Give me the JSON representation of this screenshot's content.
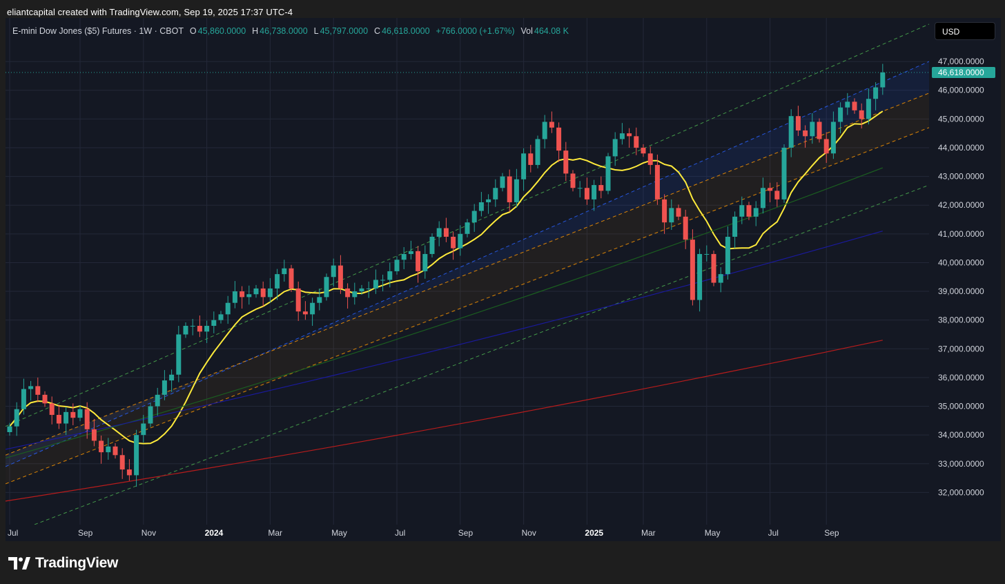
{
  "caption": "eliantcapital created with TradingView.com, Sep 19, 2025 17:37 UTC-4",
  "brand": "TradingView",
  "currency_button": "USD",
  "legend": {
    "symbol": "E-mini Dow Jones ($5) Futures · 1W · CBOT",
    "o_label": "O",
    "o_value": "45,860.0000",
    "h_label": "H",
    "h_value": "46,738.0000",
    "l_label": "L",
    "l_value": "45,797.0000",
    "c_label": "C",
    "c_value": "46,618.0000",
    "change": "+766.0000 (+1.67%)",
    "vol_label": "Vol",
    "vol_value": "464.08 K"
  },
  "colors": {
    "up": "#26a69a",
    "down": "#ef5350",
    "sma_yellow": "#ffeb3b",
    "sma_green": "#1b5e20",
    "sma_blue": "#1a1a9c",
    "sma_red": "#b71c1c",
    "channel_green": "#4caf50",
    "channel_blue": "#2962ff",
    "channel_orange": "#ff9800"
  },
  "chart_data": {
    "type": "candlestick",
    "timeframe": "1W",
    "y_axis": {
      "min": 31000,
      "max": 47400,
      "ticks": [
        32000,
        33000,
        34000,
        35000,
        36000,
        37000,
        38000,
        39000,
        40000,
        41000,
        42000,
        43000,
        44000,
        45000,
        46000,
        47000
      ],
      "tick_labels": [
        "32,000.0000",
        "33,000.0000",
        "34,000.0000",
        "35,000.0000",
        "36,000.0000",
        "37,000.0000",
        "38,000.0000",
        "39,000.0000",
        "40,000.0000",
        "41,000.0000",
        "42,000.0000",
        "43,000.0000",
        "44,000.0000",
        "45,000.0000",
        "46,000.0000",
        "47,000.0000"
      ],
      "last_price": 46618,
      "last_price_label": "46,618.0000"
    },
    "x_axis": {
      "ticks": [
        {
          "label": "Jul",
          "week": 0,
          "bold": false
        },
        {
          "label": "Sep",
          "week": 10,
          "bold": false
        },
        {
          "label": "Nov",
          "week": 19,
          "bold": false
        },
        {
          "label": "2024",
          "week": 28,
          "bold": true
        },
        {
          "label": "Mar",
          "week": 37,
          "bold": false
        },
        {
          "label": "May",
          "week": 46,
          "bold": false
        },
        {
          "label": "Jul",
          "week": 55,
          "bold": false
        },
        {
          "label": "Sep",
          "week": 64,
          "bold": false
        },
        {
          "label": "Nov",
          "week": 73,
          "bold": false
        },
        {
          "label": "2025",
          "week": 82,
          "bold": true
        },
        {
          "label": "Mar",
          "week": 90,
          "bold": false
        },
        {
          "label": "May",
          "week": 99,
          "bold": false
        },
        {
          "label": "Jul",
          "week": 108,
          "bold": false
        },
        {
          "label": "Sep",
          "week": 116,
          "bold": false
        }
      ]
    },
    "closes": [
      34300,
      34900,
      35600,
      35700,
      35400,
      35100,
      34700,
      34400,
      34800,
      34600,
      34900,
      34200,
      33800,
      33400,
      33600,
      33300,
      32800,
      32600,
      34000,
      34400,
      35000,
      35400,
      35900,
      36100,
      37500,
      37800,
      37800,
      37600,
      37800,
      38000,
      38200,
      38600,
      39000,
      38800,
      38900,
      39100,
      38800,
      39100,
      39600,
      39800,
      39100,
      38300,
      38200,
      38600,
      38800,
      39500,
      39900,
      39100,
      38800,
      39000,
      39100,
      39100,
      39400,
      39400,
      39700,
      40100,
      40300,
      40400,
      39700,
      40300,
      40900,
      41200,
      40900,
      40500,
      41000,
      41400,
      41800,
      42100,
      42200,
      42600,
      43000,
      42100,
      42900,
      43800,
      43400,
      44300,
      44900,
      44700,
      43900,
      43100,
      42600,
      42600,
      42200,
      42700,
      42500,
      43700,
      44300,
      44500,
      44400,
      44000,
      43800,
      43400,
      42200,
      41400,
      41900,
      41600,
      40800,
      38700,
      40300,
      40300,
      39300,
      39600,
      40900,
      41600,
      42000,
      41600,
      41900,
      42600,
      42500,
      42200,
      44000,
      45100,
      44600,
      44400,
      44900,
      44300,
      43800,
      44900,
      45400,
      45600,
      45300,
      45000,
      45700,
      46100,
      46618
    ],
    "channel_lines": [
      {
        "name": "upper-green",
        "start": 34300,
        "end": 48300
      },
      {
        "name": "upper-blue",
        "start": 32900,
        "end": 47000
      },
      {
        "name": "mid-orange",
        "start": 33300,
        "end": 45900
      },
      {
        "name": "lower-orange",
        "start": 32300,
        "end": 44700
      },
      {
        "name": "lower-green",
        "start": 30500,
        "end": 42700
      }
    ],
    "moving_averages": [
      {
        "name": "sma-yellow",
        "start": 33500,
        "end": 44000
      },
      {
        "name": "sma-green",
        "start": 33200,
        "end": 43300
      },
      {
        "name": "sma-blue",
        "start": 33500,
        "end": 41100
      },
      {
        "name": "sma-red",
        "start": 31700,
        "end": 37300
      }
    ]
  }
}
